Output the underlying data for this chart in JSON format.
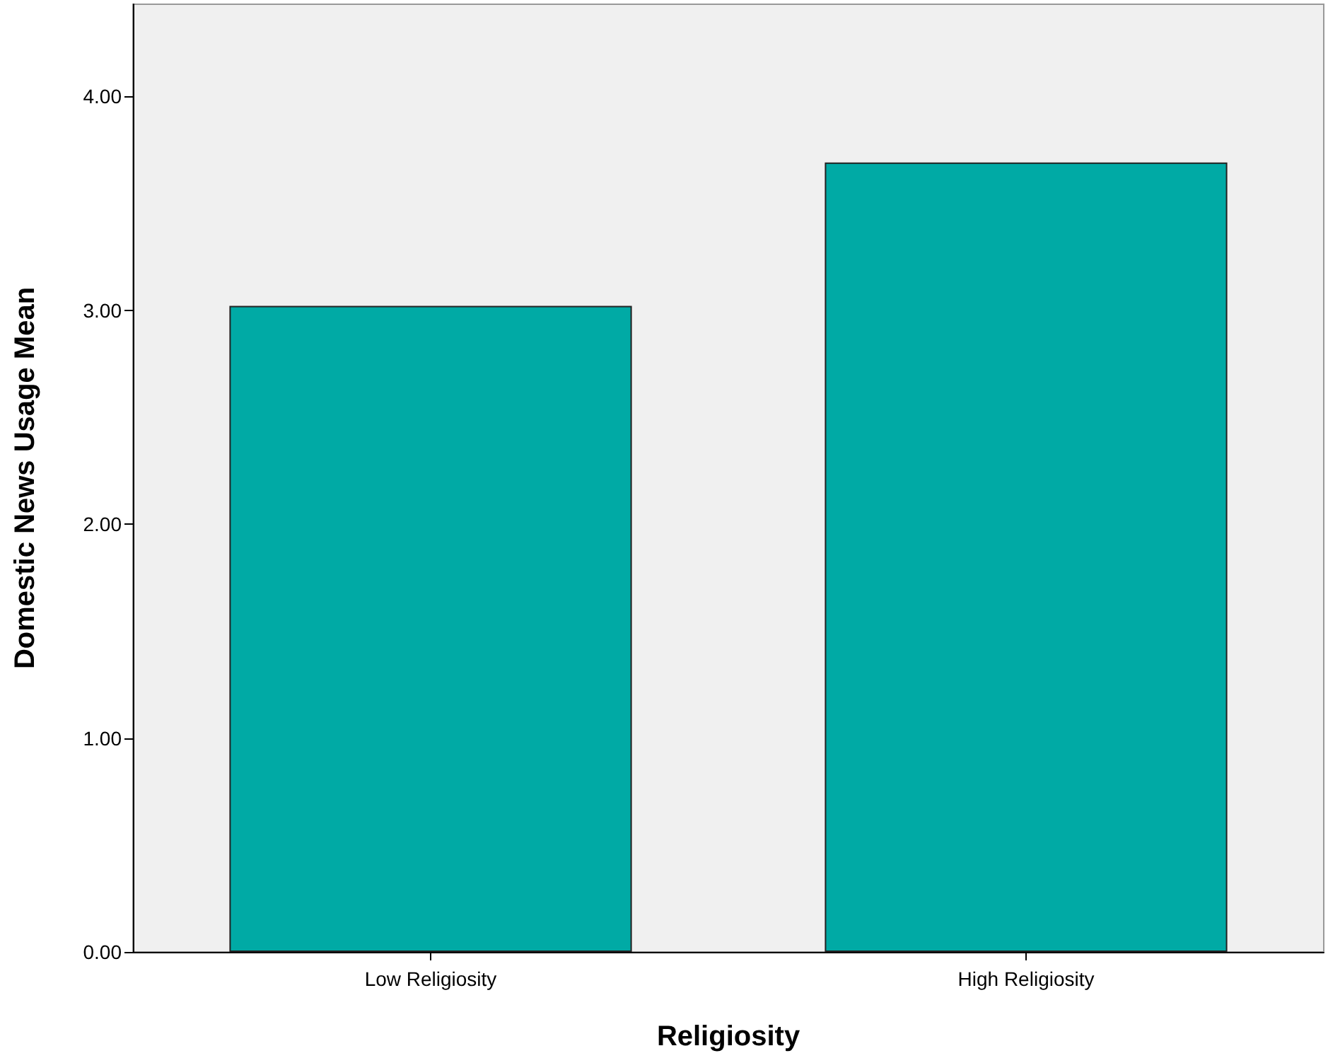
{
  "chart_data": {
    "type": "bar",
    "xlabel": "Religiosity",
    "ylabel": "Domestic News Usage Mean",
    "categories": [
      "Low Religiosity",
      "High Religiosity"
    ],
    "values": [
      3.02,
      3.69
    ],
    "color": "#00aaa5",
    "ylim": [
      0,
      4.43
    ],
    "yticks": [
      {
        "value": 0,
        "label": "0.00"
      },
      {
        "value": 1,
        "label": "1.00"
      },
      {
        "value": 2,
        "label": "2.00"
      },
      {
        "value": 3,
        "label": "3.00"
      },
      {
        "value": 4,
        "label": "4.00"
      }
    ],
    "grid": false
  }
}
